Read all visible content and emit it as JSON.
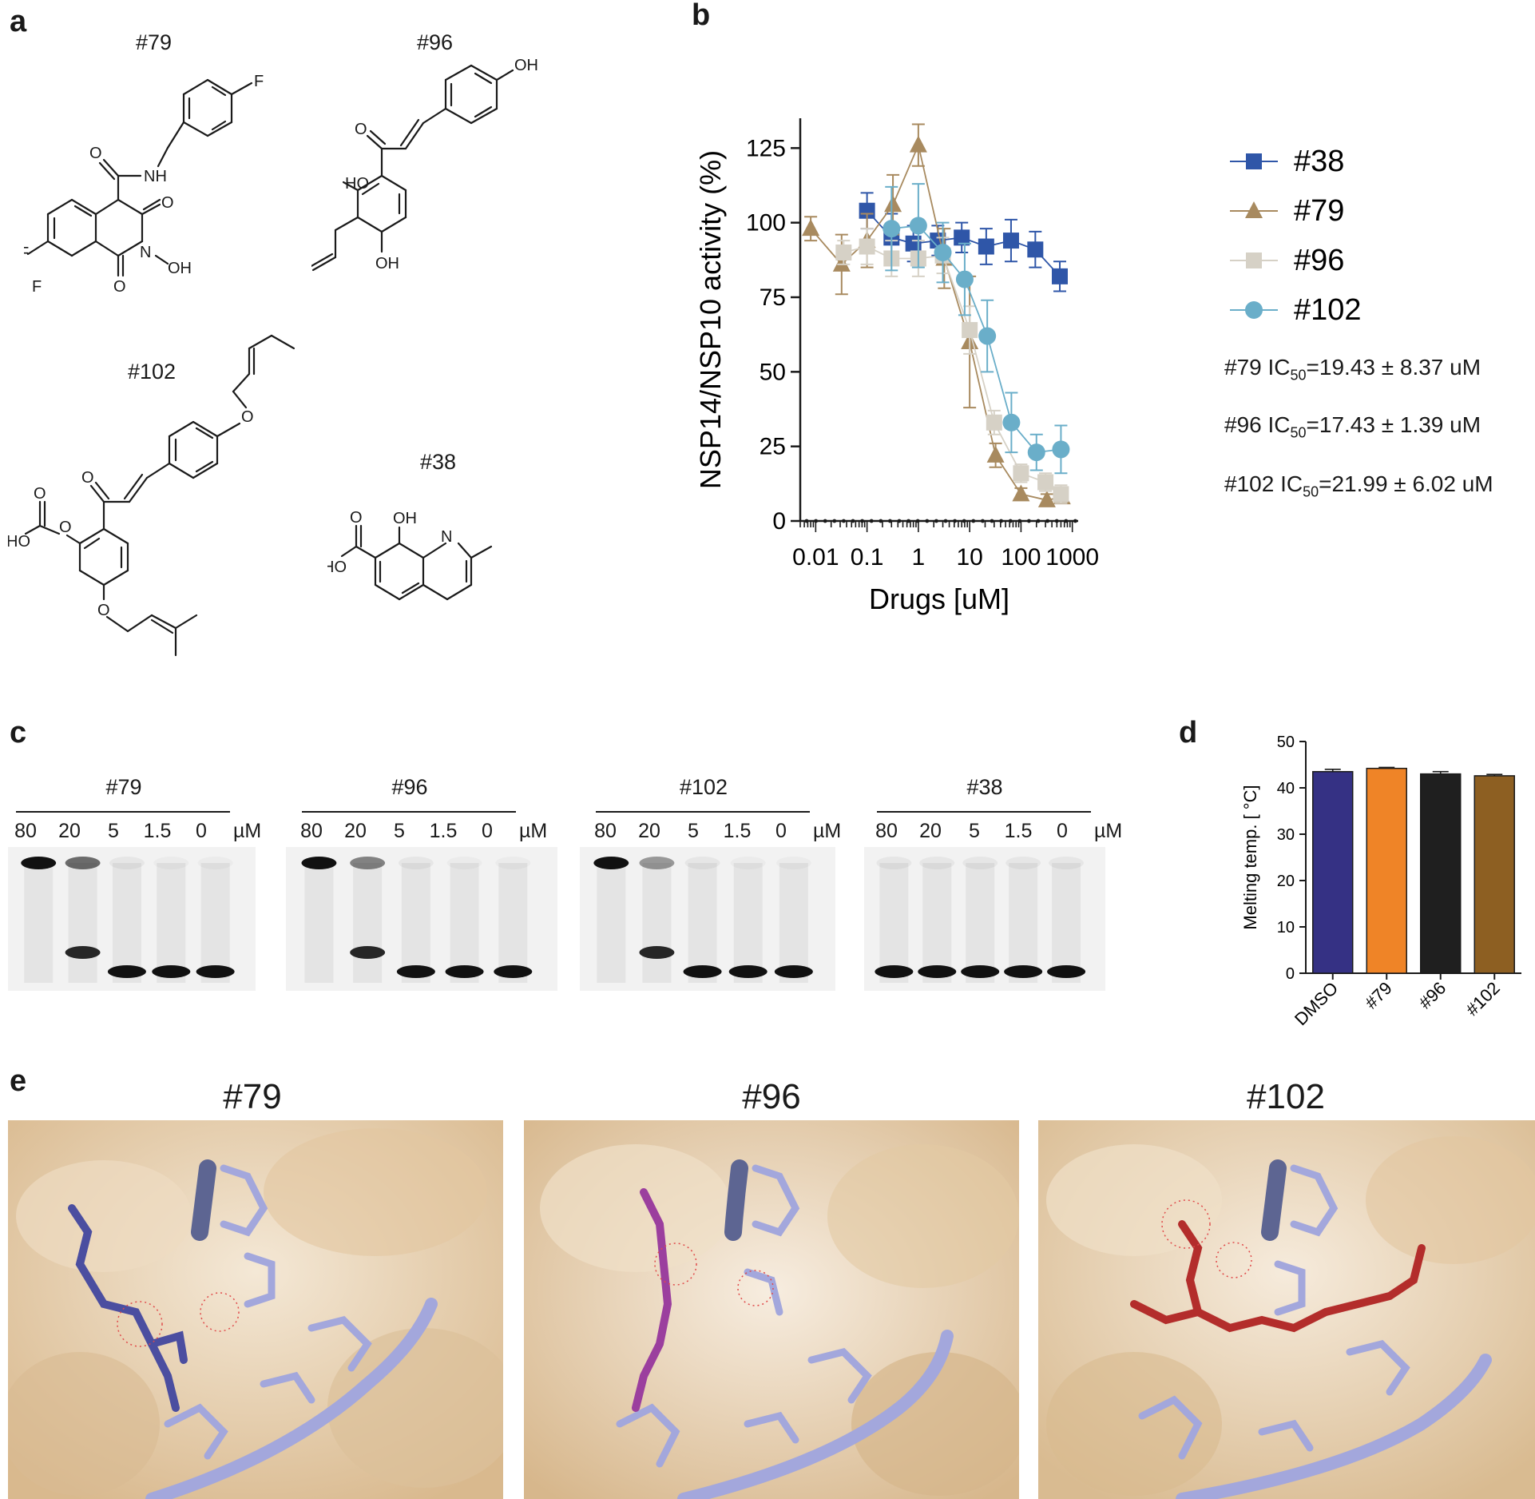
{
  "panels": {
    "a": "a",
    "b": "b",
    "c": "c",
    "d": "d",
    "e": "e"
  },
  "panel_a": {
    "compounds": [
      "#79",
      "#96",
      "#102",
      "#38"
    ],
    "atoms": {
      "F": "F",
      "NH": "NH",
      "O": "O",
      "N": "N",
      "OH": "OH",
      "HO": "HO"
    }
  },
  "chart_data": [
    {
      "type": "scatter",
      "xlabel": "Drugs [uM]",
      "ylabel": "NSP14/NSP10 activity (%)",
      "xscale": "log",
      "xlim": [
        0.005,
        1300
      ],
      "ylim": [
        0,
        135
      ],
      "xticks": [
        "0.01",
        "0.1",
        "1",
        "10",
        "100",
        "1000"
      ],
      "yticks": [
        "0",
        "25",
        "50",
        "75",
        "100",
        "125"
      ],
      "legend_position": "right",
      "series": [
        {
          "name": "#38",
          "color": "#2f56a8",
          "marker": "square",
          "x": [
            0.1,
            0.3,
            0.8,
            2.4,
            7,
            21,
            64,
            190,
            570
          ],
          "y": [
            104,
            95,
            93,
            94,
            95,
            92,
            94,
            91,
            82
          ],
          "err": [
            6,
            8,
            6,
            5,
            5,
            6,
            7,
            6,
            5
          ]
        },
        {
          "name": "#79",
          "color": "#a88a5f",
          "marker": "triangle",
          "x": [
            0.008,
            0.032,
            0.1,
            0.32,
            1.0,
            3.2,
            10,
            32,
            100,
            320,
            630
          ],
          "y": [
            98,
            86,
            94,
            106,
            126,
            88,
            60,
            22,
            9,
            7,
            8
          ],
          "err": [
            4,
            10,
            9,
            10,
            7,
            10,
            22,
            4,
            2,
            2,
            2
          ]
        },
        {
          "name": "#96",
          "color": "#d6d1c6",
          "marker": "square",
          "x": [
            0.035,
            0.1,
            0.3,
            1,
            3,
            10,
            30,
            100,
            300,
            600
          ],
          "y": [
            90,
            92,
            88,
            88,
            89,
            64,
            33,
            16,
            13,
            9
          ],
          "err": [
            4,
            6,
            6,
            6,
            6,
            8,
            4,
            3,
            3,
            3
          ]
        },
        {
          "name": "#102",
          "color": "#6aaec9",
          "marker": "circle",
          "x": [
            0.3,
            1,
            3,
            8,
            22,
            65,
            200,
            600
          ],
          "y": [
            98,
            99,
            90,
            81,
            62,
            33,
            23,
            24
          ],
          "err": [
            14,
            14,
            10,
            12,
            12,
            10,
            6,
            8
          ]
        }
      ],
      "ic50": [
        {
          "label": "#79 IC",
          "sub": "50",
          "value": "=19.43 ± 8.37 uM"
        },
        {
          "label": "#96 IC",
          "sub": "50",
          "value": "=17.43 ± 1.39 uM"
        },
        {
          "label": "#102 IC",
          "sub": "50",
          "value": "=21.99 ± 6.02 uM"
        }
      ]
    },
    {
      "type": "bar",
      "ylabel": "Melting temp. [  °C]",
      "ylim": [
        0,
        50
      ],
      "yticks": [
        "0",
        "10",
        "20",
        "30",
        "40",
        "50"
      ],
      "categories": [
        "DMSO",
        "#79",
        "#96",
        "#102"
      ],
      "values": [
        43.5,
        44.2,
        43.0,
        42.6
      ],
      "err": [
        0.5,
        0.2,
        0.5,
        0.3
      ],
      "colors": [
        "#353184",
        "#ef8427",
        "#1f1f1f",
        "#8d5f22"
      ]
    }
  ],
  "panel_c": {
    "gels": [
      {
        "title": "#79",
        "concs": [
          "80",
          "20",
          "5",
          "1.5",
          "0"
        ],
        "unit": "µM",
        "product_pattern": [
          1,
          0.6,
          0.05,
          0.03,
          0.03
        ],
        "cleaved": [
          0,
          1,
          1,
          1,
          1
        ]
      },
      {
        "title": "#96",
        "concs": [
          "80",
          "20",
          "5",
          "1.5",
          "0"
        ],
        "unit": "µM",
        "product_pattern": [
          1,
          0.5,
          0.05,
          0.03,
          0.03
        ],
        "cleaved": [
          0,
          1,
          1,
          1,
          1
        ]
      },
      {
        "title": "#102",
        "concs": [
          "80",
          "20",
          "5",
          "1.5",
          "0"
        ],
        "unit": "µM",
        "product_pattern": [
          1,
          0.4,
          0.05,
          0.03,
          0.03
        ],
        "cleaved": [
          0,
          1,
          1,
          1,
          1
        ]
      },
      {
        "title": "#38",
        "concs": [
          "80",
          "20",
          "5",
          "1.5",
          "0"
        ],
        "unit": "µM",
        "product_pattern": [
          0.05,
          0.05,
          0.05,
          0.05,
          0.05
        ],
        "cleaved": [
          1,
          1,
          1,
          1,
          1
        ]
      }
    ]
  },
  "panel_e": {
    "titles": [
      "#79",
      "#96",
      "#102"
    ],
    "ligand_colors": [
      "#4b4ea0",
      "#9b3f9e",
      "#b32d2b"
    ],
    "rna_color": "#a3a7dc",
    "surface_color": "#e8d2b2"
  }
}
